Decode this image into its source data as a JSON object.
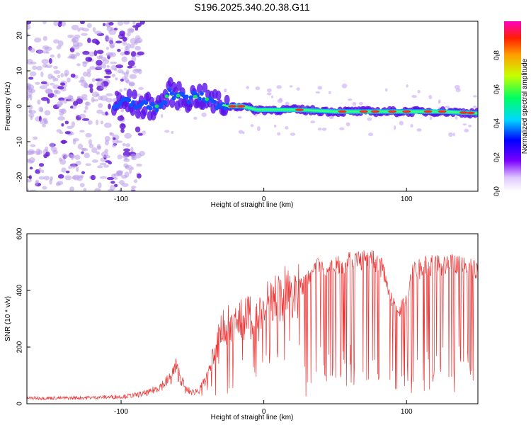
{
  "title": "S196.2025.340.20.38.G11",
  "chart_data": [
    {
      "type": "heatmap",
      "xlabel": "Height of straight line (km)",
      "ylabel": "Frequency (Hz)",
      "xlim": [
        -166,
        150
      ],
      "ylim": [
        -24,
        24
      ],
      "xticks": [
        -100,
        0,
        100
      ],
      "yticks": [
        -20,
        -10,
        0,
        10,
        20
      ],
      "colorbar": {
        "label": "Normalized spectral amplitude",
        "range": [
          0,
          1
        ],
        "ticks": [
          "0.0",
          "0.2",
          "0.4",
          "0.6",
          "0.8"
        ]
      },
      "ridge": {
        "x": [
          -105,
          -95,
          -85,
          -75,
          -65,
          -55,
          -45,
          -35,
          -25,
          -15,
          -5,
          5,
          25,
          50,
          75,
          100,
          125,
          150
        ],
        "frequency_hz": [
          0,
          1,
          0,
          0,
          4,
          2,
          3,
          1,
          0,
          0,
          -1,
          -1,
          -1,
          -1.5,
          -1.5,
          -1.5,
          -1.5,
          -2
        ]
      },
      "noise_region_x": [
        -166,
        -85
      ]
    },
    {
      "type": "line",
      "xlabel": "Height of straight line (km)",
      "ylabel": "SNR (10 * v/v)",
      "xlim": [
        -166,
        150
      ],
      "ylim": [
        0,
        600
      ],
      "xticks": [
        -100,
        0,
        100
      ],
      "yticks": [
        0,
        200,
        400,
        600
      ],
      "series": [
        {
          "name": "SNR",
          "color": "#ee3333",
          "x": [
            -166,
            -140,
            -120,
            -100,
            -90,
            -80,
            -75,
            -70,
            -65,
            -62,
            -58,
            -55,
            -50,
            -45,
            -40,
            -35,
            -30,
            -25,
            -20,
            -15,
            -10,
            -5,
            0,
            5,
            10,
            15,
            20,
            25,
            30,
            35,
            40,
            45,
            50,
            55,
            60,
            65,
            70,
            75,
            80,
            85,
            90,
            95,
            100,
            105,
            110,
            115,
            120,
            125,
            130,
            135,
            140,
            145,
            150
          ],
          "values": [
            20,
            20,
            22,
            25,
            30,
            40,
            55,
            70,
            90,
            130,
            90,
            50,
            40,
            50,
            90,
            170,
            260,
            280,
            290,
            300,
            310,
            330,
            340,
            360,
            380,
            390,
            400,
            420,
            440,
            480,
            500,
            500,
            510,
            510,
            520,
            520,
            520,
            520,
            510,
            470,
            360,
            340,
            380,
            480,
            490,
            500,
            500,
            500,
            500,
            510,
            500,
            490,
            480
          ]
        }
      ]
    }
  ],
  "colors": {
    "axis": "#000000",
    "line": "#ee3333",
    "noise": "#b89be8",
    "noise_dark": "#6a1fd8"
  }
}
